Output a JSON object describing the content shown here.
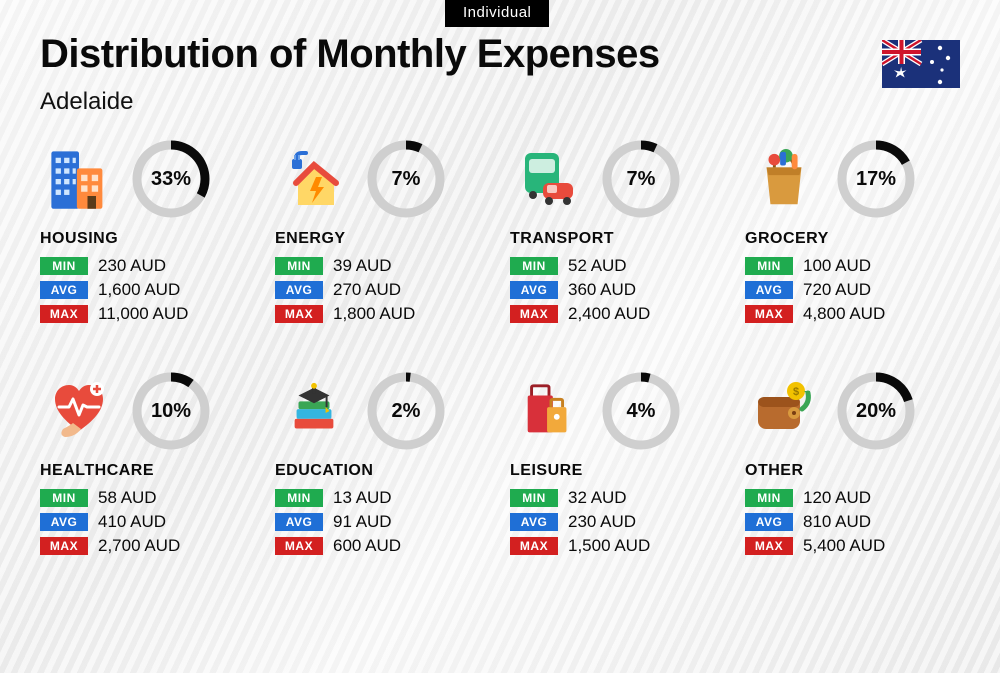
{
  "tab_label": "Individual",
  "title": "Distribution of Monthly Expenses",
  "subtitle": "Adelaide",
  "currency": "AUD",
  "palette": {
    "min_bg": "#1fab4f",
    "avg_bg": "#1f6fd6",
    "max_bg": "#d32020",
    "ring_track": "#cfcfcf",
    "ring_fill": "#0a0a0a",
    "text": "#0a0a0a"
  },
  "badges": {
    "min": "MIN",
    "avg": "AVG",
    "max": "MAX"
  },
  "donut": {
    "outer_r": 34,
    "stroke_w": 9
  },
  "categories": [
    {
      "key": "housing",
      "label": "HOUSING",
      "pct": 33,
      "min": "230",
      "avg": "1,600",
      "max": "11,000"
    },
    {
      "key": "energy",
      "label": "ENERGY",
      "pct": 7,
      "min": "39",
      "avg": "270",
      "max": "1,800"
    },
    {
      "key": "transport",
      "label": "TRANSPORT",
      "pct": 7,
      "min": "52",
      "avg": "360",
      "max": "2,400"
    },
    {
      "key": "grocery",
      "label": "GROCERY",
      "pct": 17,
      "min": "100",
      "avg": "720",
      "max": "4,800"
    },
    {
      "key": "healthcare",
      "label": "HEALTHCARE",
      "pct": 10,
      "min": "58",
      "avg": "410",
      "max": "2,700"
    },
    {
      "key": "education",
      "label": "EDUCATION",
      "pct": 2,
      "min": "13",
      "avg": "91",
      "max": "600"
    },
    {
      "key": "leisure",
      "label": "LEISURE",
      "pct": 4,
      "min": "32",
      "avg": "230",
      "max": "1,500"
    },
    {
      "key": "other",
      "label": "OTHER",
      "pct": 20,
      "min": "120",
      "avg": "810",
      "max": "5,400"
    }
  ],
  "flag": {
    "bg": "#1b317a",
    "stars": "#ffffff",
    "union_red": "#cf142b",
    "union_white": "#ffffff"
  }
}
